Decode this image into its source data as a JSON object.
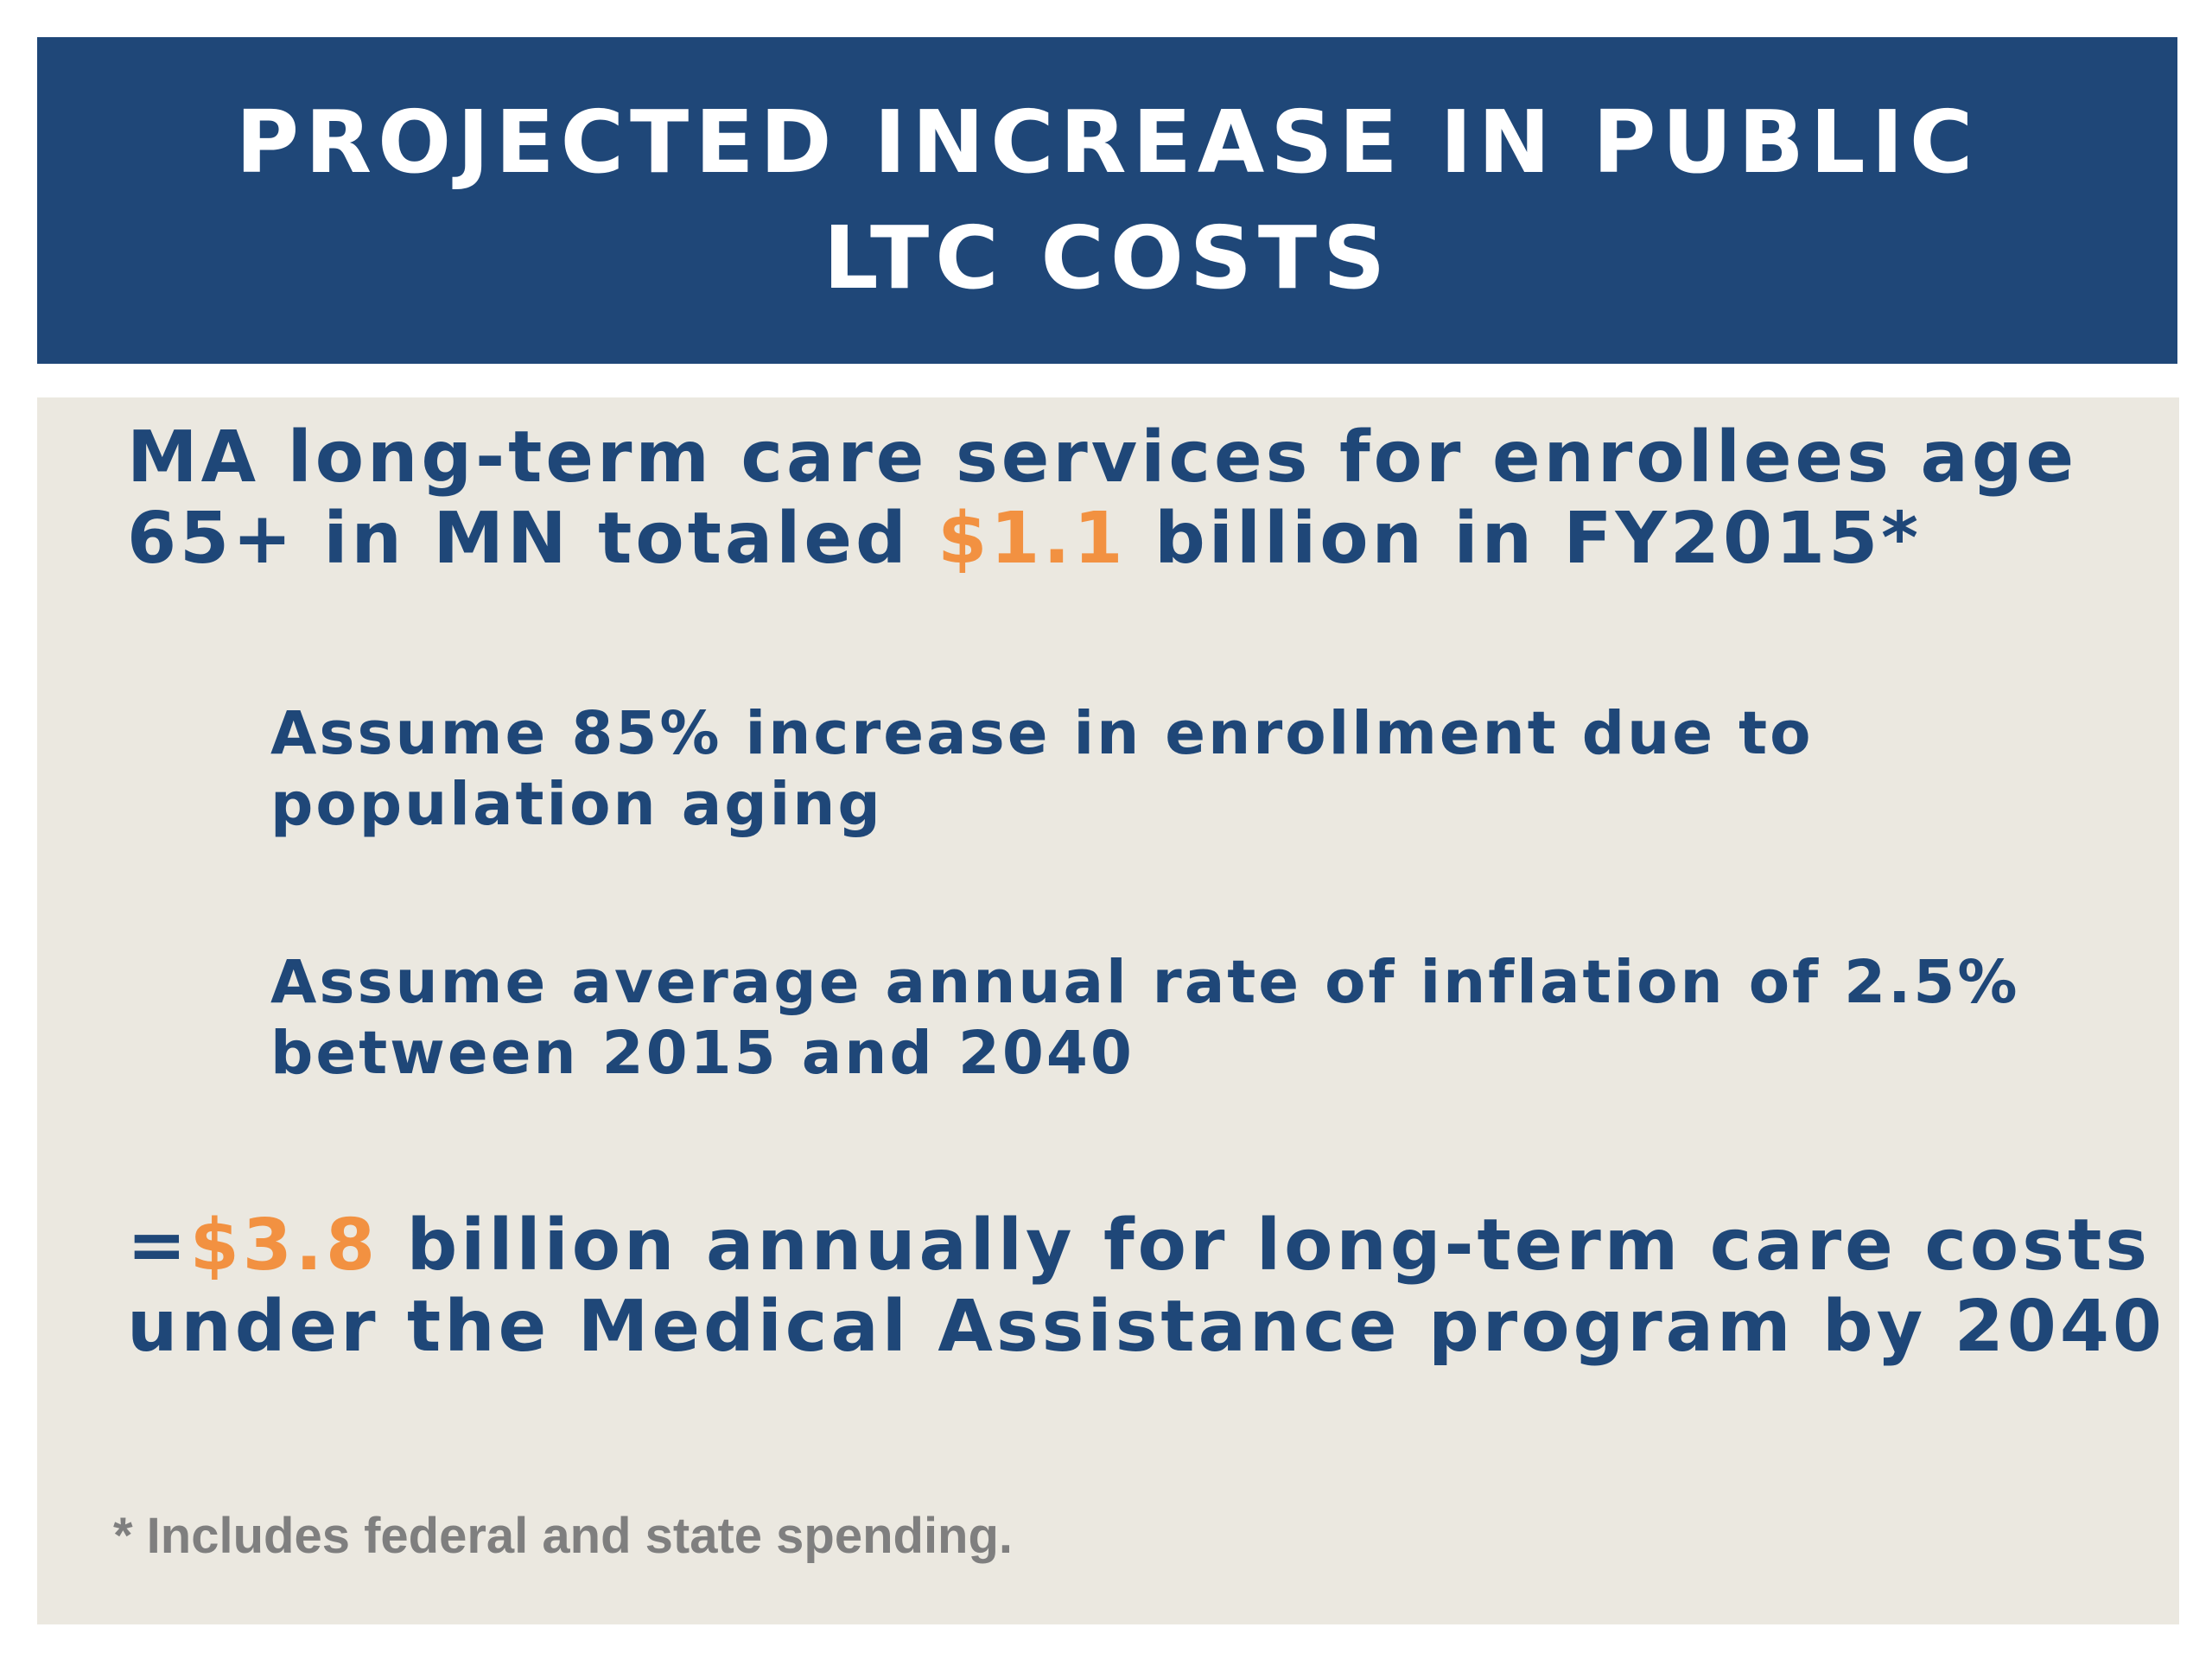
{
  "slide": {
    "title_line_1": "PROJECTED INCREASE IN PUBLIC",
    "title_line_2": "LTC COSTS",
    "statement": {
      "before": "MA long-term care services for enrollees age 65+ in MN totaled ",
      "highlight": "$1.1",
      "after": " billion in FY2015*"
    },
    "assumptions": [
      {
        "text": "Assume 85% increase in enrollment due to population aging"
      },
      {
        "text": "Assume average annual rate of inflation of 2.5% between 2015 and 2040"
      }
    ],
    "result": {
      "prefix": "=",
      "highlight": "$3.8",
      "after": " billion annually for long-term care costs under the Medical Assistance program by 2040"
    },
    "footnote": "* Includes federal and state spending.",
    "colors": {
      "title_background": "#1f4778",
      "text_primary": "#1f4778",
      "highlight": "#f29141",
      "panel_background": "#ebe8e0",
      "footnote": "#7f7f7f"
    }
  }
}
